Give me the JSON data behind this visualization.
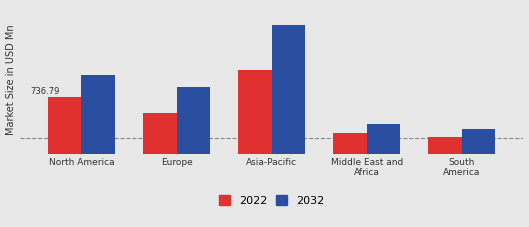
{
  "categories": [
    "North America",
    "Europe",
    "Asia-Pacific",
    "Middle East and\nAfrica",
    "South\nAmerica"
  ],
  "values_2022": [
    530,
    380,
    780,
    190,
    155
  ],
  "values_2032": [
    730,
    620,
    1200,
    280,
    230
  ],
  "color_2022": "#e03030",
  "color_2032": "#2a4fa0",
  "ylabel": "Market Size in USD Mn",
  "annotation": "736.79",
  "bar_width": 0.35,
  "dashed_line_y": 145,
  "background_color": "#e8e8e8",
  "legend_labels": [
    "2022",
    "2032"
  ],
  "ylim": [
    0,
    1380
  ],
  "legend_fontsize": 8
}
